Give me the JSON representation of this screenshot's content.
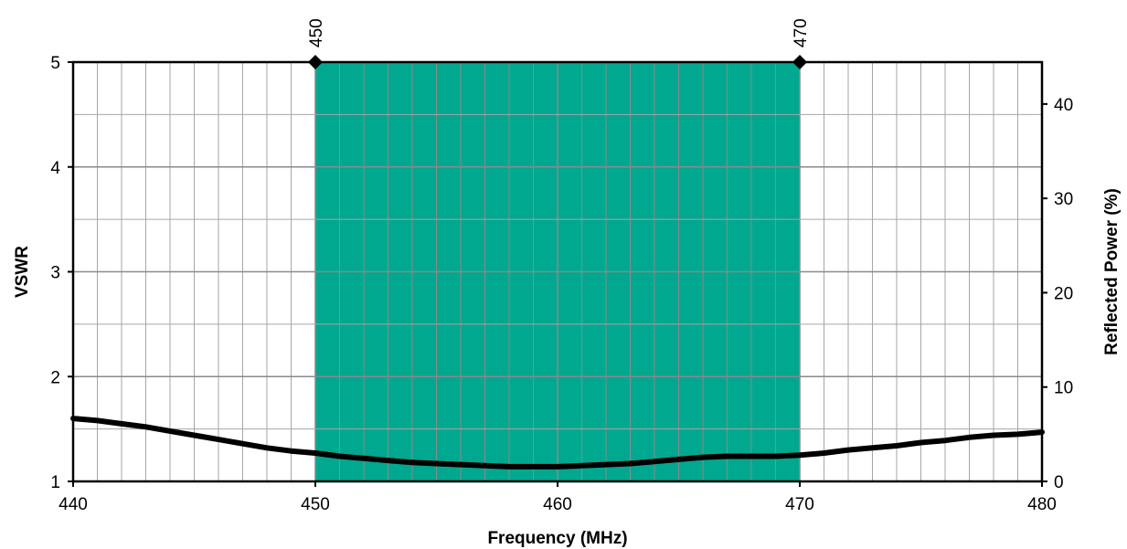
{
  "chart_data": {
    "type": "line",
    "title": "",
    "xlabel": "Frequency (MHz)",
    "ylabel": "VSWR",
    "y2label": "Reflected Power (%)",
    "xlim": [
      440,
      480
    ],
    "ylim": [
      1,
      5
    ],
    "y2lim": [
      0,
      44.44
    ],
    "x_ticks": [
      "440",
      "450",
      "460",
      "470",
      "480"
    ],
    "y_ticks": [
      "1",
      "2",
      "3",
      "4",
      "5"
    ],
    "y2_ticks": [
      "0",
      "10",
      "20",
      "30",
      "40"
    ],
    "grid": true,
    "band": {
      "start": 450,
      "end": 470,
      "labels": [
        "450",
        "470"
      ],
      "color": "#00a88f"
    },
    "series": [
      {
        "color": "#000000",
        "x": [
          440,
          441,
          442,
          443,
          444,
          445,
          446,
          447,
          448,
          449,
          450,
          451,
          452,
          453,
          454,
          455,
          456,
          457,
          458,
          459,
          460,
          461,
          462,
          463,
          464,
          465,
          466,
          467,
          468,
          469,
          470,
          471,
          472,
          473,
          474,
          475,
          476,
          477,
          478,
          479,
          480
        ],
        "y": [
          1.6,
          1.58,
          1.55,
          1.52,
          1.48,
          1.44,
          1.4,
          1.36,
          1.32,
          1.29,
          1.27,
          1.24,
          1.22,
          1.2,
          1.18,
          1.17,
          1.16,
          1.15,
          1.14,
          1.14,
          1.14,
          1.15,
          1.16,
          1.17,
          1.19,
          1.21,
          1.23,
          1.24,
          1.24,
          1.24,
          1.25,
          1.27,
          1.3,
          1.32,
          1.34,
          1.37,
          1.39,
          1.42,
          1.44,
          1.45,
          1.47
        ]
      }
    ]
  }
}
